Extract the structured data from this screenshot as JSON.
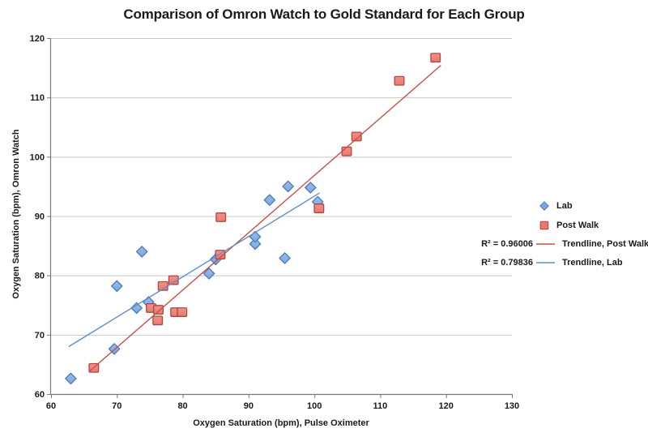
{
  "chart_data": {
    "type": "scatter",
    "title": "Comparison of Omron Watch to Gold Standard for Each Group",
    "xlabel": "Oxygen Saturation (bpm), Pulse Oximeter",
    "ylabel": "Oxygen Saturation (bpm), Omron Watch",
    "xlim": [
      60,
      130
    ],
    "ylim": [
      60,
      120
    ],
    "x_ticks": [
      60,
      70,
      80,
      90,
      100,
      110,
      120,
      130
    ],
    "y_ticks": [
      60,
      70,
      80,
      90,
      100,
      110,
      120
    ],
    "grid": "horizontal-only",
    "gridline_color": "#C8C8C8",
    "axis_color": "#7A7A7A",
    "legend_position": "right",
    "series": [
      {
        "name": "Lab",
        "marker": "diamond",
        "fill": "#7DA7DC",
        "fill_light": "#9BBCE8",
        "stroke": "#4A7CB8",
        "points": [
          [
            63,
            62.6
          ],
          [
            69.6,
            67.6
          ],
          [
            70,
            78.2
          ],
          [
            73,
            74.5
          ],
          [
            74.8,
            75.5
          ],
          [
            73.8,
            84
          ],
          [
            84,
            80.3
          ],
          [
            85,
            82.7
          ],
          [
            91,
            85.3
          ],
          [
            91,
            86.5
          ],
          [
            93.2,
            92.7
          ],
          [
            95.5,
            82.9
          ],
          [
            96,
            95
          ],
          [
            99.4,
            94.8
          ],
          [
            100.5,
            92.4
          ]
        ]
      },
      {
        "name": "Post Walk",
        "marker": "square",
        "fill": "#E8786F",
        "fill_light": "#F0938A",
        "stroke": "#B2453F",
        "points": [
          [
            66.5,
            64.4
          ],
          [
            75.2,
            74.5
          ],
          [
            76.3,
            74.2
          ],
          [
            76.2,
            72.4
          ],
          [
            78.9,
            73.8
          ],
          [
            79.9,
            73.8
          ],
          [
            77,
            78.2
          ],
          [
            78.6,
            79.2
          ],
          [
            85.7,
            83.5
          ],
          [
            85.8,
            89.8
          ],
          [
            100.7,
            91.3
          ],
          [
            104.9,
            100.9
          ],
          [
            106.4,
            103.4
          ],
          [
            112.9,
            112.8
          ],
          [
            118.4,
            116.7
          ]
        ]
      }
    ],
    "trendlines": [
      {
        "name": "Trendline, Post Walk",
        "color": "#C9504B",
        "r2": 0.96006,
        "r2_label": "R² = 0.96006",
        "start": [
          65.8,
          63.8
        ],
        "end": [
          119.2,
          115.4
        ]
      },
      {
        "name": "Trendline, Lab",
        "color": "#5E8FCD",
        "r2": 0.79836,
        "r2_label": "R² = 0.79836",
        "start": [
          62.7,
          68.0
        ],
        "end": [
          100.8,
          93.9
        ]
      }
    ]
  }
}
